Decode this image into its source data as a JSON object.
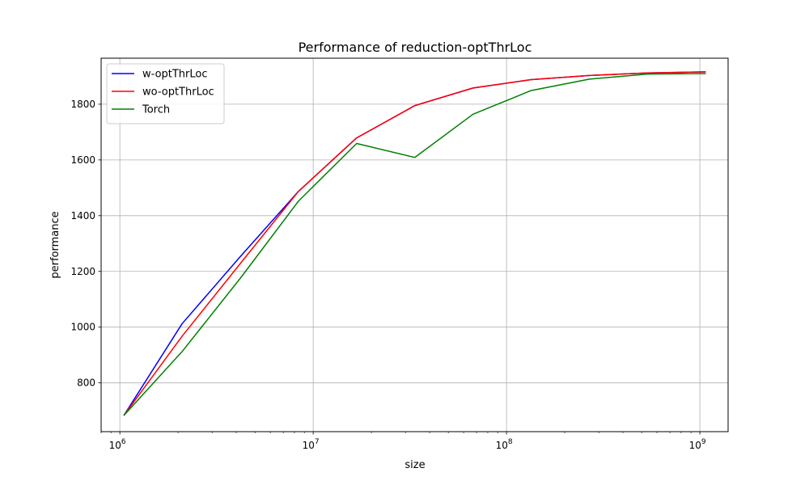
{
  "chart_data": {
    "type": "line",
    "title": "Performance of reduction-optThrLoc",
    "xlabel": "size",
    "ylabel": "performance",
    "x_scale": "log",
    "xlim": [
      800000,
      1400000000
    ],
    "ylim": [
      625,
      1965
    ],
    "x_ticks": [
      {
        "value": 1000000,
        "base": "10",
        "exp": "6"
      },
      {
        "value": 10000000,
        "base": "10",
        "exp": "7"
      },
      {
        "value": 100000000,
        "base": "10",
        "exp": "8"
      },
      {
        "value": 1000000000,
        "base": "10",
        "exp": "9"
      }
    ],
    "y_ticks": [
      800,
      1000,
      1200,
      1400,
      1600,
      1800
    ],
    "grid": true,
    "legend_position": "top-left",
    "x": [
      1048576,
      2097152,
      4194304,
      8388608,
      16777216,
      33554432,
      67108864,
      134217728,
      268435456,
      536870912,
      1073741824
    ],
    "series": [
      {
        "name": "w-optThrLoc",
        "color": "#0000ff",
        "values": [
          683,
          1012,
          1253,
          1487,
          1679,
          1795,
          1858,
          1888,
          1903,
          1912,
          1916
        ]
      },
      {
        "name": "wo-optThrLoc",
        "color": "#ff0000",
        "values": [
          683,
          967,
          1228,
          1487,
          1679,
          1795,
          1858,
          1888,
          1903,
          1912,
          1916
        ]
      },
      {
        "name": "Torch",
        "color": "#008000",
        "values": [
          683,
          912,
          1175,
          1452,
          1659,
          1609,
          1764,
          1849,
          1890,
          1908,
          1910
        ]
      }
    ]
  }
}
